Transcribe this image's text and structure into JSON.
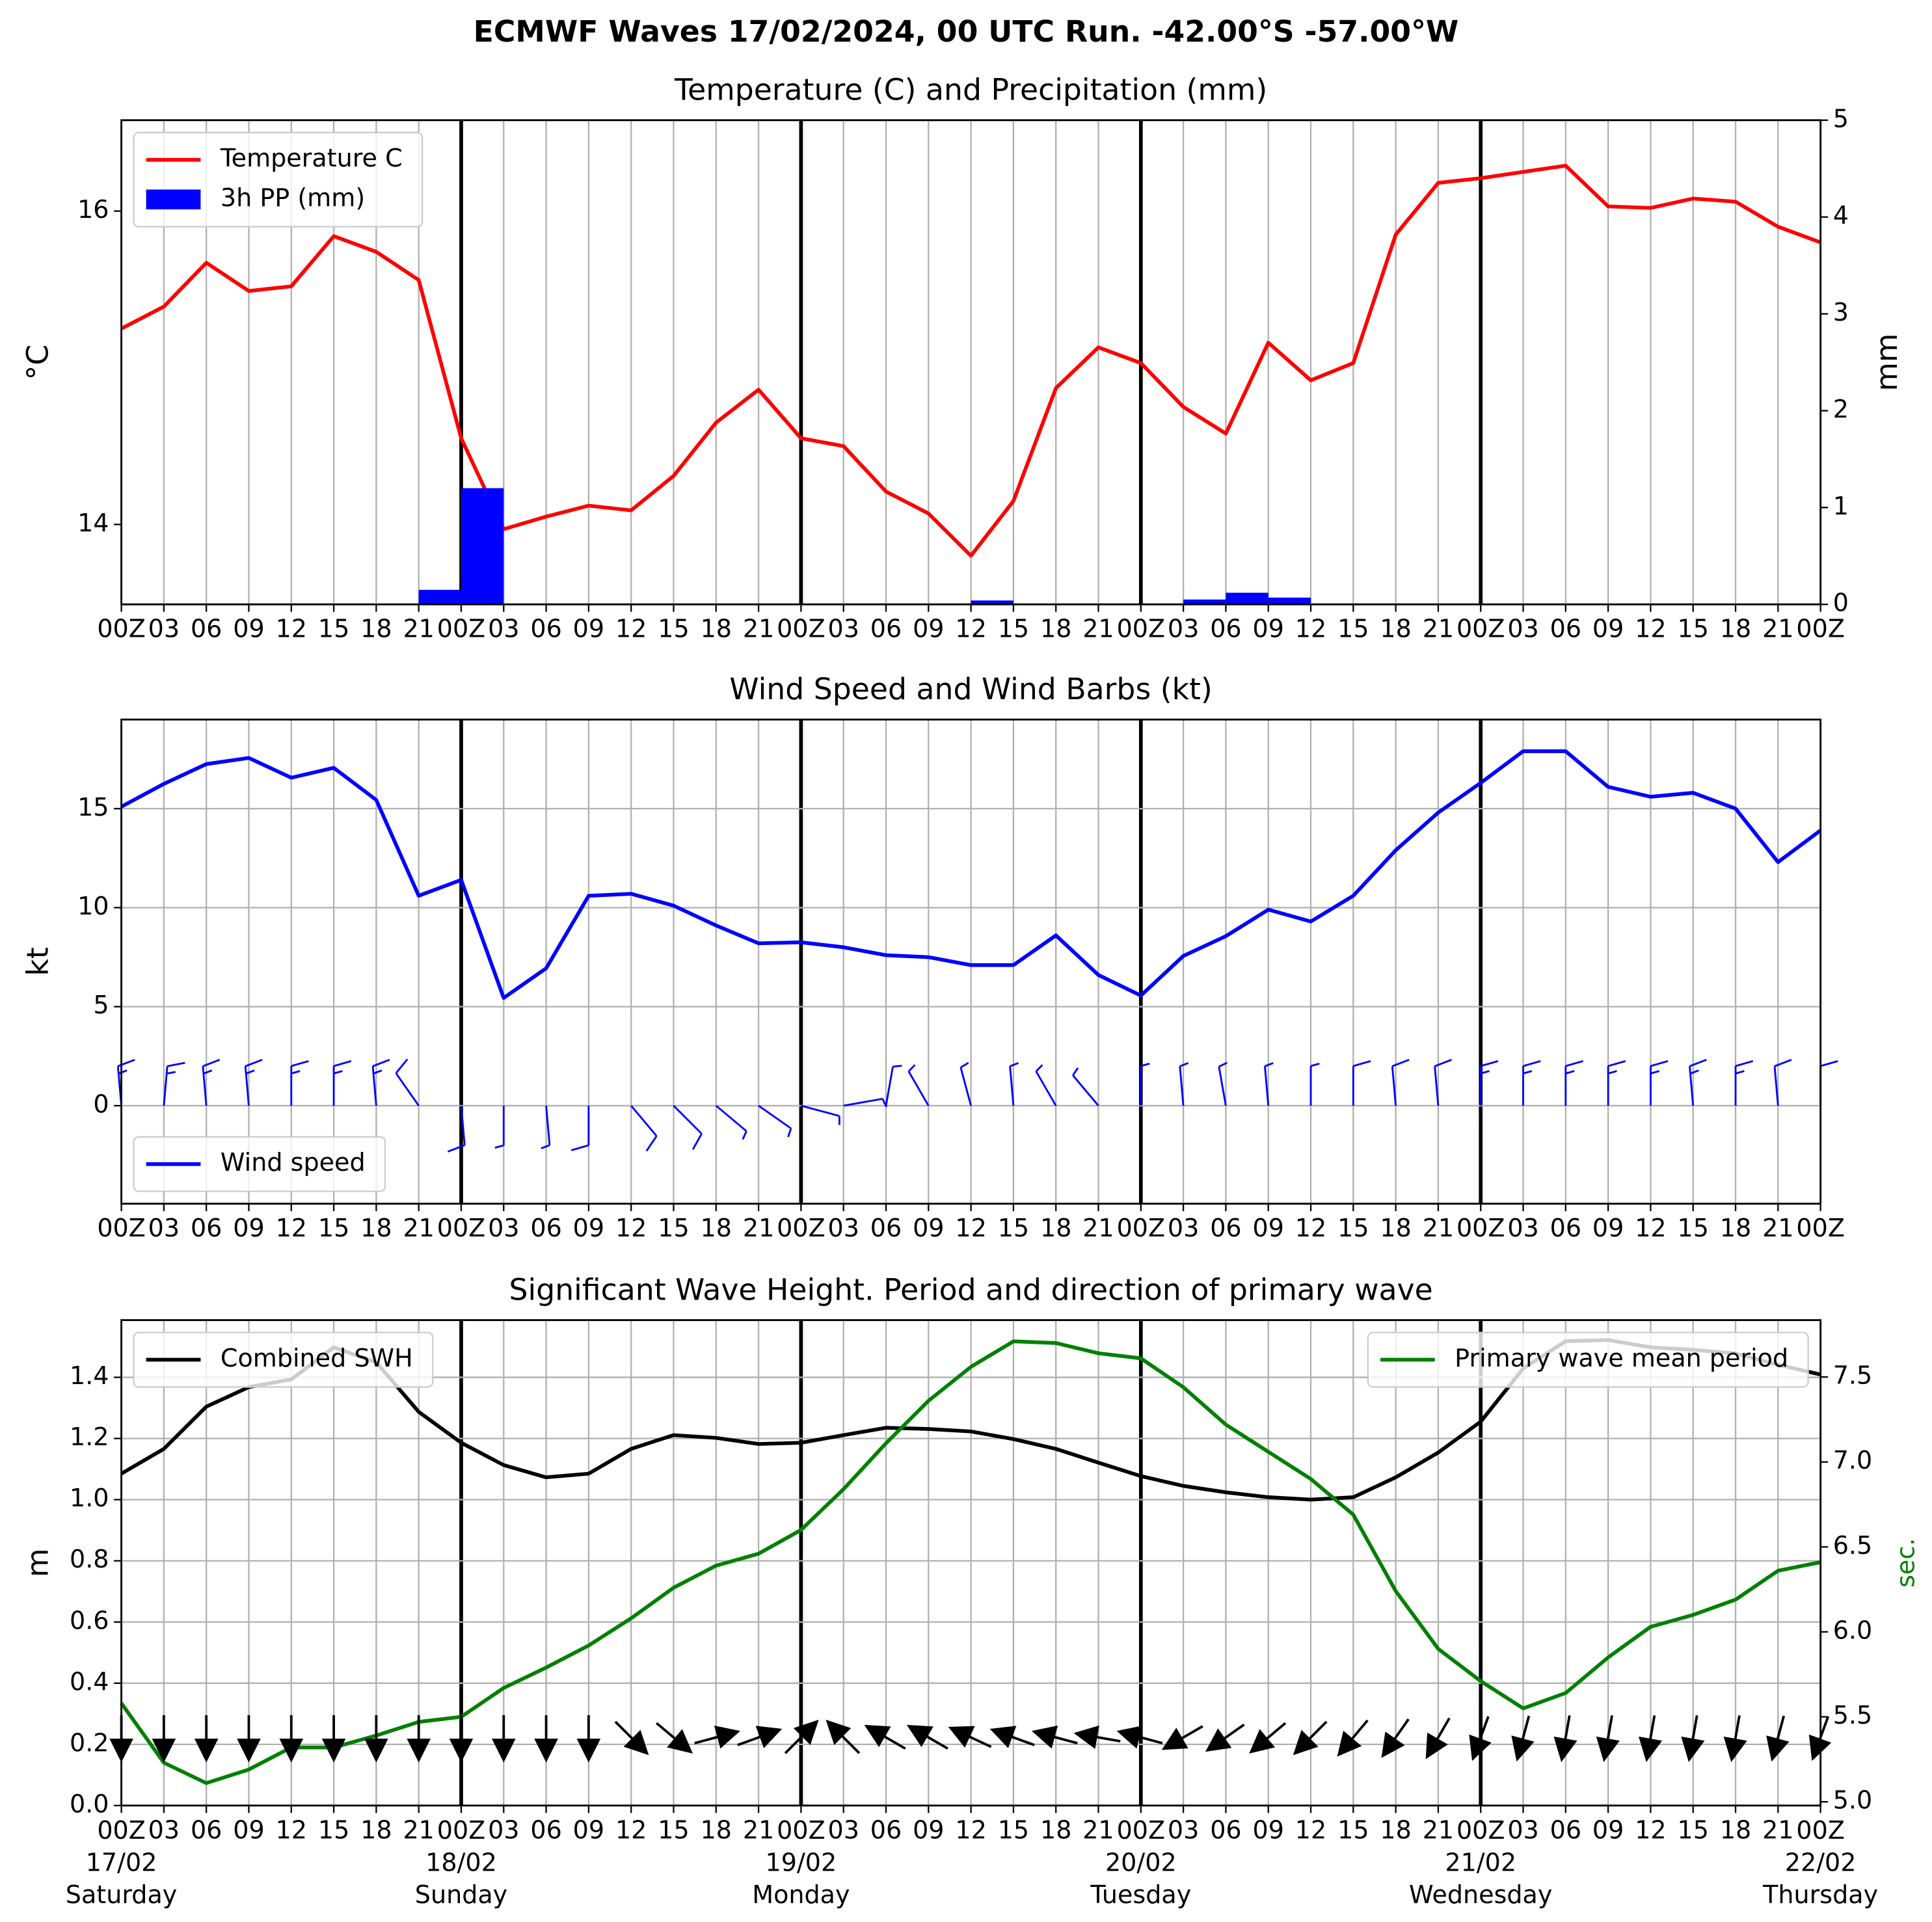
{
  "title": "ECMWF Waves 17/02/2024, 00 UTC Run. -42.00°S -57.00°W",
  "chart_data": [
    {
      "type": "line",
      "title": "Temperature (C) and Precipitation (mm)",
      "ylabel": "°C",
      "y2label": "mm",
      "categories": [
        "00Z",
        "03",
        "06",
        "09",
        "12",
        "15",
        "18",
        "21",
        "00Z",
        "03",
        "06",
        "09",
        "12",
        "15",
        "18",
        "21",
        "00Z",
        "03",
        "06",
        "09",
        "12",
        "15",
        "18",
        "21",
        "00Z",
        "03",
        "06",
        "09",
        "12",
        "15",
        "18",
        "21",
        "00Z",
        "03",
        "06",
        "09",
        "12",
        "15",
        "18",
        "21",
        "00Z"
      ],
      "series": [
        {
          "name": "Temperature C",
          "color": "#ff0000",
          "values": [
            15.25,
            15.39,
            15.67,
            15.49,
            15.52,
            15.84,
            15.74,
            15.56,
            14.55,
            13.97,
            14.05,
            14.12,
            14.09,
            14.31,
            14.65,
            14.86,
            14.55,
            14.5,
            14.21,
            14.07,
            13.8,
            14.15,
            14.87,
            15.13,
            15.03,
            14.75,
            14.58,
            15.16,
            14.92,
            15.03,
            15.85,
            16.18,
            16.21,
            16.25,
            16.29,
            16.03,
            16.02,
            16.08,
            16.06,
            15.9,
            15.8
          ]
        },
        {
          "name": "3h PP (mm)",
          "color": "#0000ff",
          "type": "bar",
          "axis": "y2",
          "values": [
            0,
            0,
            0,
            0,
            0,
            0,
            0,
            0.15,
            1.2,
            0,
            0,
            0,
            0,
            0,
            0,
            0,
            0,
            0,
            0,
            0,
            0.04,
            0,
            0,
            0,
            0,
            0.05,
            0.12,
            0.07,
            0,
            0,
            0,
            0,
            0,
            0,
            0,
            0,
            0,
            0,
            0,
            0,
            0
          ]
        }
      ],
      "ylim": [
        13.49,
        16.58
      ],
      "yticks": [
        14,
        16
      ],
      "y2lim": [
        0,
        5
      ],
      "y2ticks": [
        0,
        1,
        2,
        3,
        4,
        5
      ],
      "grid": "x",
      "legend": "upper left"
    },
    {
      "type": "line",
      "title": "Wind Speed and Wind Barbs (kt)",
      "ylabel": "kt",
      "categories": [
        "00Z",
        "03",
        "06",
        "09",
        "12",
        "15",
        "18",
        "21",
        "00Z",
        "03",
        "06",
        "09",
        "12",
        "15",
        "18",
        "21",
        "00Z",
        "03",
        "06",
        "09",
        "12",
        "15",
        "18",
        "21",
        "00Z",
        "03",
        "06",
        "09",
        "12",
        "15",
        "18",
        "21",
        "00Z",
        "03",
        "06",
        "09",
        "12",
        "15",
        "18",
        "21",
        "00Z"
      ],
      "series": [
        {
          "name": "Wind speed",
          "color": "#0000ff",
          "values": [
            15.1,
            16.25,
            17.25,
            17.56,
            16.56,
            17.06,
            15.44,
            10.6,
            11.4,
            5.44,
            6.94,
            10.6,
            10.7,
            10.1,
            9.1,
            8.2,
            8.25,
            8.0,
            7.6,
            7.5,
            7.1,
            7.1,
            8.6,
            6.6,
            5.56,
            7.56,
            8.56,
            9.9,
            9.3,
            10.6,
            12.9,
            14.8,
            16.3,
            17.9,
            17.9,
            16.1,
            15.6,
            15.8,
            15.0,
            12.3,
            13.9
          ]
        }
      ],
      "wind_direction": [
        355,
        5,
        355,
        355,
        0,
        0,
        355,
        325,
        175,
        180,
        175,
        180,
        140,
        135,
        130,
        125,
        105,
        80,
        10,
        330,
        345,
        355,
        330,
        320,
        0,
        355,
        350,
        355,
        0,
        0,
        355,
        355,
        0,
        0,
        0,
        0,
        0,
        355,
        0,
        355,
        0
      ],
      "ylim": [
        -4.95,
        19.5
      ],
      "yticks": [
        0,
        5,
        10,
        15
      ],
      "grid": "both",
      "legend": "lower left"
    },
    {
      "type": "line",
      "title": "Significant Wave Height. Period and direction of primary wave",
      "ylabel": "m",
      "y2label": "sec.",
      "y2label_color": "#008000",
      "categories": [
        "00Z\n17/02\nSaturday",
        "03",
        "06",
        "09",
        "12",
        "15",
        "18",
        "21",
        "00Z\n18/02\nSunday",
        "03",
        "06",
        "09",
        "12",
        "15",
        "18",
        "21",
        "00Z\n19/02\nMonday",
        "03",
        "06",
        "09",
        "12",
        "15",
        "18",
        "21",
        "00Z\n20/02\nTuesday",
        "03",
        "06",
        "09",
        "12",
        "15",
        "18",
        "21",
        "00Z\n21/02\nWednesday",
        "03",
        "06",
        "09",
        "12",
        "15",
        "18",
        "21",
        "00Z\n22/02\nThursday"
      ],
      "series": [
        {
          "name": "Combined SWH",
          "color": "#000000",
          "legend": "upper left",
          "values": [
            1.085,
            1.166,
            1.304,
            1.368,
            1.393,
            1.498,
            1.449,
            1.287,
            1.186,
            1.113,
            1.073,
            1.085,
            1.166,
            1.211,
            1.202,
            1.182,
            1.186,
            1.211,
            1.235,
            1.231,
            1.223,
            1.198,
            1.166,
            1.121,
            1.077,
            1.045,
            1.024,
            1.008,
            1.0,
            1.008,
            1.073,
            1.154,
            1.255,
            1.429,
            1.518,
            1.522,
            1.498,
            1.49,
            1.478,
            1.441,
            1.409
          ]
        },
        {
          "name": "Primary wave mean period",
          "color": "#008000",
          "axis": "y2",
          "legend": "upper right",
          "values": [
            5.58,
            5.23,
            5.11,
            5.19,
            5.32,
            5.32,
            5.39,
            5.47,
            5.5,
            5.67,
            5.79,
            5.92,
            6.08,
            6.26,
            6.39,
            6.46,
            6.6,
            6.84,
            7.11,
            7.36,
            7.56,
            7.71,
            7.7,
            7.64,
            7.61,
            7.44,
            7.22,
            7.06,
            6.9,
            6.69,
            6.24,
            5.9,
            5.71,
            5.55,
            5.64,
            5.85,
            6.03,
            6.1,
            6.19,
            6.36,
            6.41
          ]
        }
      ],
      "wave_direction": [
        180,
        180,
        180,
        180,
        180,
        180,
        180,
        180,
        180,
        180,
        180,
        180,
        135,
        130,
        75,
        70,
        45,
        315,
        300,
        300,
        295,
        290,
        285,
        280,
        285,
        240,
        235,
        230,
        225,
        220,
        215,
        210,
        200,
        195,
        190,
        190,
        190,
        190,
        190,
        195,
        200
      ],
      "ylim": [
        0,
        1.587
      ],
      "yticks": [
        {
          "value": 0,
          "label": "0.0"
        },
        0.2,
        0.4,
        0.6,
        0.8,
        {
          "value": 1,
          "label": "1.0"
        },
        1.2,
        1.4
      ],
      "y2lim": [
        4.978,
        7.835
      ],
      "y2ticks": [
        {
          "value": 5,
          "label": "5.0"
        },
        5.5,
        {
          "value": 6,
          "label": "6.0"
        },
        6.5,
        {
          "value": 7,
          "label": "7.0"
        },
        7.5
      ],
      "grid": "both"
    }
  ]
}
